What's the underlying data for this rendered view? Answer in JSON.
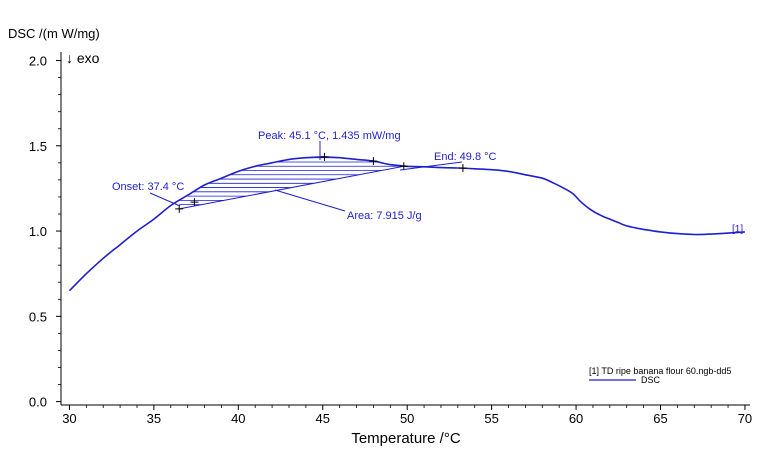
{
  "chart_data": {
    "type": "line",
    "ylabel": "DSC  /(m W/mg)",
    "exo_label": "↓ exo",
    "xlabel": "Temperature /°C",
    "xlim": [
      29.5,
      70.3
    ],
    "ylim": [
      -0.02,
      2.05
    ],
    "x_ticks": [
      30,
      35,
      40,
      45,
      50,
      55,
      60,
      65,
      70
    ],
    "y_ticks": [
      0.0,
      0.5,
      1.0,
      1.5,
      2.0
    ],
    "x_tick_labels": [
      "30",
      "35",
      "40",
      "45",
      "50",
      "55",
      "60",
      "65",
      "70"
    ],
    "y_tick_labels": [
      "0.0",
      "0.5",
      "1.0",
      "1.5",
      "2.0"
    ],
    "grid": false,
    "series": [
      {
        "name": "DSC",
        "color": "#1f1fcc",
        "x": [
          30.0,
          31.0,
          32.0,
          33.0,
          34.0,
          35.0,
          36.0,
          37.0,
          38.0,
          39.0,
          40.0,
          41.0,
          42.0,
          43.0,
          44.0,
          45.0,
          46.0,
          47.0,
          48.0,
          49.0,
          50.0,
          51.0,
          52.0,
          53.0,
          54.0,
          55.0,
          56.0,
          57.0,
          58.0,
          58.7,
          59.3,
          59.8,
          60.3,
          60.8,
          61.5,
          62.0,
          62.5,
          63.0,
          64.0,
          65.0,
          66.0,
          67.0,
          68.0,
          69.0,
          70.0
        ],
        "y": [
          0.65,
          0.75,
          0.84,
          0.92,
          1.0,
          1.07,
          1.15,
          1.21,
          1.27,
          1.31,
          1.35,
          1.38,
          1.4,
          1.42,
          1.43,
          1.435,
          1.43,
          1.42,
          1.41,
          1.39,
          1.38,
          1.377,
          1.372,
          1.37,
          1.365,
          1.36,
          1.35,
          1.33,
          1.31,
          1.28,
          1.25,
          1.22,
          1.17,
          1.13,
          1.09,
          1.07,
          1.05,
          1.03,
          1.01,
          0.995,
          0.985,
          0.98,
          0.982,
          0.988,
          0.995
        ]
      }
    ],
    "baseline": {
      "x": [
        36.5,
        49.8
      ],
      "y": [
        1.13,
        1.38
      ]
    },
    "markers": [
      {
        "x": 36.5,
        "y": 1.13
      },
      {
        "x": 37.4,
        "y": 1.17
      },
      {
        "x": 45.1,
        "y": 1.435
      },
      {
        "x": 48.0,
        "y": 1.41
      },
      {
        "x": 49.8,
        "y": 1.38
      },
      {
        "x": 53.3,
        "y": 1.37
      }
    ],
    "annotations": {
      "peak": "Peak: 45.1 °C, 1.435 mW/mg",
      "onset": "Onset: 37.4 °C",
      "end": "End: 49.8 °C",
      "area": "Area: 7.915 J/g",
      "curve_tag": "[1]"
    },
    "legend": {
      "position": "bottom-right",
      "file": "[1] TD ripe banana flour 60.ngb-dd5",
      "entry": "DSC"
    }
  }
}
